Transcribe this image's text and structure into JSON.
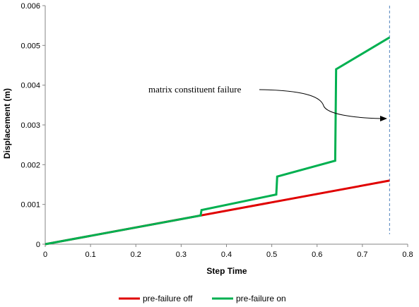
{
  "chart_data": {
    "type": "line",
    "title": "",
    "xlabel": "Step Time",
    "ylabel": "Displacement (m)",
    "xlim": [
      0,
      0.8
    ],
    "ylim": [
      0,
      0.006
    ],
    "x_ticks": [
      "0",
      "0.1",
      "0.2",
      "0.3",
      "0.4",
      "0.5",
      "0.6",
      "0.7",
      "0.8"
    ],
    "y_ticks": [
      "0",
      "0.001",
      "0.002",
      "0.003",
      "0.004",
      "0.005",
      "0.006"
    ],
    "grid": false,
    "legend_position": "bottom",
    "series": [
      {
        "name": "pre-failure off",
        "color": "#e00000",
        "points": [
          [
            0,
            0
          ],
          [
            0.76,
            0.0016
          ]
        ]
      },
      {
        "name": "pre-failure on",
        "color": "#00b050",
        "points": [
          [
            0,
            0
          ],
          [
            0.343,
            0.00072
          ],
          [
            0.345,
            0.00086
          ],
          [
            0.51,
            0.00125
          ],
          [
            0.512,
            0.0017
          ],
          [
            0.64,
            0.0021
          ],
          [
            0.642,
            0.0044
          ],
          [
            0.76,
            0.0052
          ]
        ]
      }
    ],
    "reference_line": {
      "x": 0.76,
      "color": "#4f81bd",
      "style": "dashed"
    },
    "annotation": {
      "text": "matrix constituent failure",
      "arrow_target": [
        0.76,
        0.0032
      ]
    }
  }
}
